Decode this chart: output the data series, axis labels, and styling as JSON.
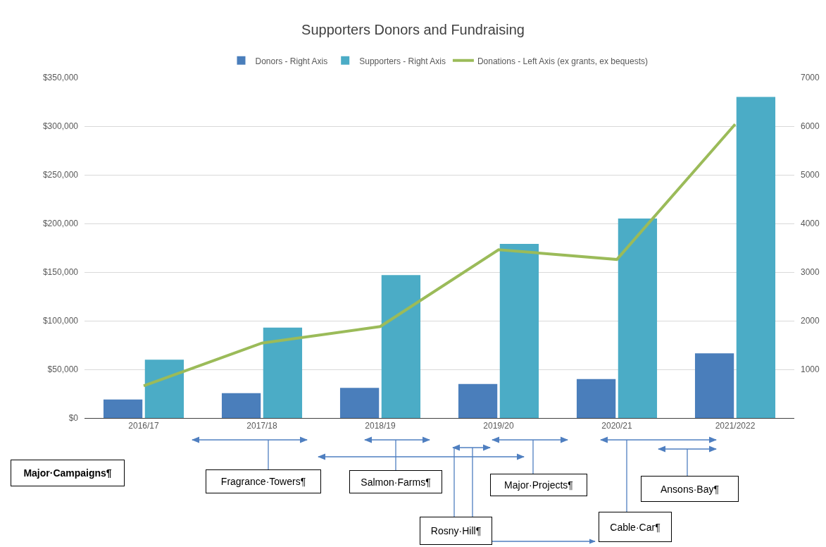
{
  "chart_data": {
    "type": "bar",
    "title": "Supporters Donors and Fundraising",
    "categories": [
      "2016/17",
      "2017/18",
      "2018/19",
      "2019/20",
      "2020/21",
      "2021/2022"
    ],
    "series": [
      {
        "name": "Donors - Right Axis",
        "axis": "y2",
        "color": "#4a7ebb",
        "values": [
          380,
          510,
          620,
          700,
          800,
          1330
        ]
      },
      {
        "name": "Supporters - Right Axis",
        "axis": "y2",
        "color": "#4bacc6",
        "values": [
          1200,
          1860,
          2940,
          3580,
          4100,
          6600
        ]
      },
      {
        "name": "Donations - Left Axis (ex grants, ex bequests)",
        "type": "line",
        "color": "#9bbb59",
        "values": [
          33000,
          77000,
          94000,
          173000,
          163000,
          302000
        ]
      }
    ],
    "ylim": [
      0,
      350000
    ],
    "yticks": [
      {
        "value": 0,
        "label": "$0"
      },
      {
        "value": 50000,
        "label": "$50,000"
      },
      {
        "value": 100000,
        "label": "$100,000"
      },
      {
        "value": 150000,
        "label": "$150,000"
      },
      {
        "value": 200000,
        "label": "$200,000"
      },
      {
        "value": 250000,
        "label": "$250,000"
      },
      {
        "value": 300000,
        "label": "$300,000"
      },
      {
        "value": 350000,
        "label": "$350,000"
      }
    ],
    "y2lim": [
      0,
      7000
    ],
    "y2ticks": [
      1000,
      2000,
      3000,
      4000,
      5000,
      6000,
      7000
    ],
    "grid": "y",
    "legend": "top",
    "marker": "none",
    "line_style": "solid",
    "annotations": [
      "Major·Campaigns¶",
      "Fragrance·Towers¶",
      "Salmon·Farms¶",
      "Major·Projects¶",
      "Rosny·Hill¶",
      "Cable·Car¶",
      "Ansons·Bay¶"
    ]
  }
}
